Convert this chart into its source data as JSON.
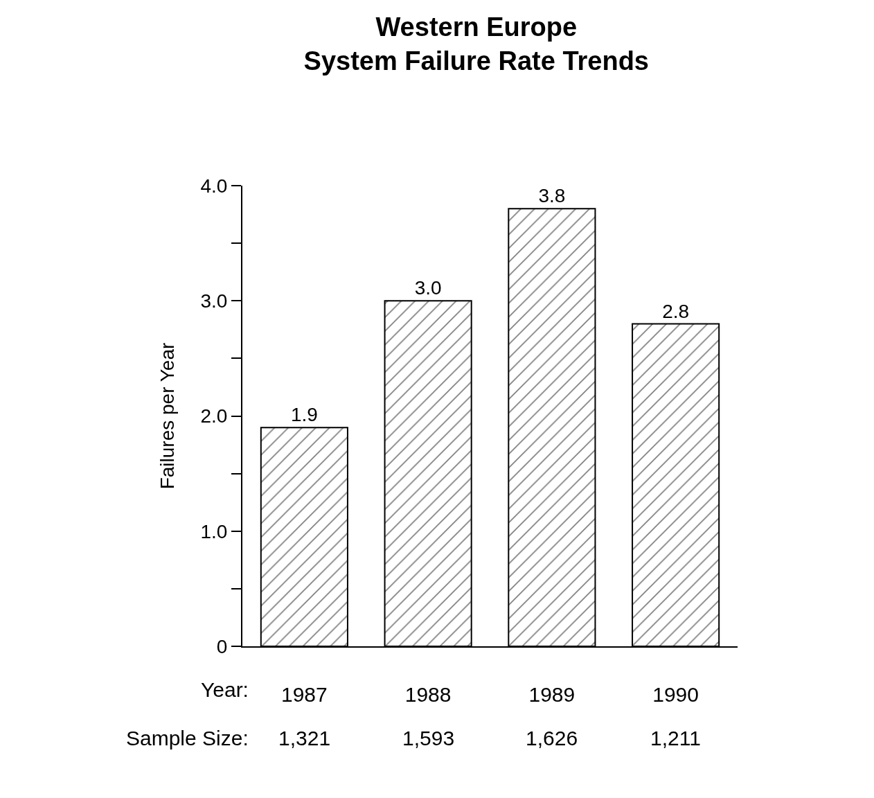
{
  "chart_data": {
    "type": "bar",
    "title": "Western Europe\nSystem Failure Rate Trends",
    "ylabel": "Failures per Year",
    "categories": [
      "1987",
      "1988",
      "1989",
      "1990"
    ],
    "values": [
      1.9,
      3.0,
      3.8,
      2.8
    ],
    "value_labels": [
      "1.9",
      "3.0",
      "3.8",
      "2.8"
    ],
    "color": "#000000",
    "ylim": [
      0,
      4
    ],
    "yticks": [
      0,
      {
        "value": 0.5,
        "label": null
      },
      {
        "value": 1,
        "label": "1.0"
      },
      {
        "value": 1.5,
        "label": null
      },
      {
        "value": 2,
        "label": "2.0"
      },
      {
        "value": 2.5,
        "label": null
      },
      {
        "value": 3,
        "label": "3.0"
      },
      {
        "value": 3.5,
        "label": null
      },
      {
        "value": 4,
        "label": "4.0"
      }
    ],
    "annotations": [
      "Year:",
      "Sample Size:",
      "1,321",
      "1,593",
      "1,626",
      "1,211"
    ]
  }
}
